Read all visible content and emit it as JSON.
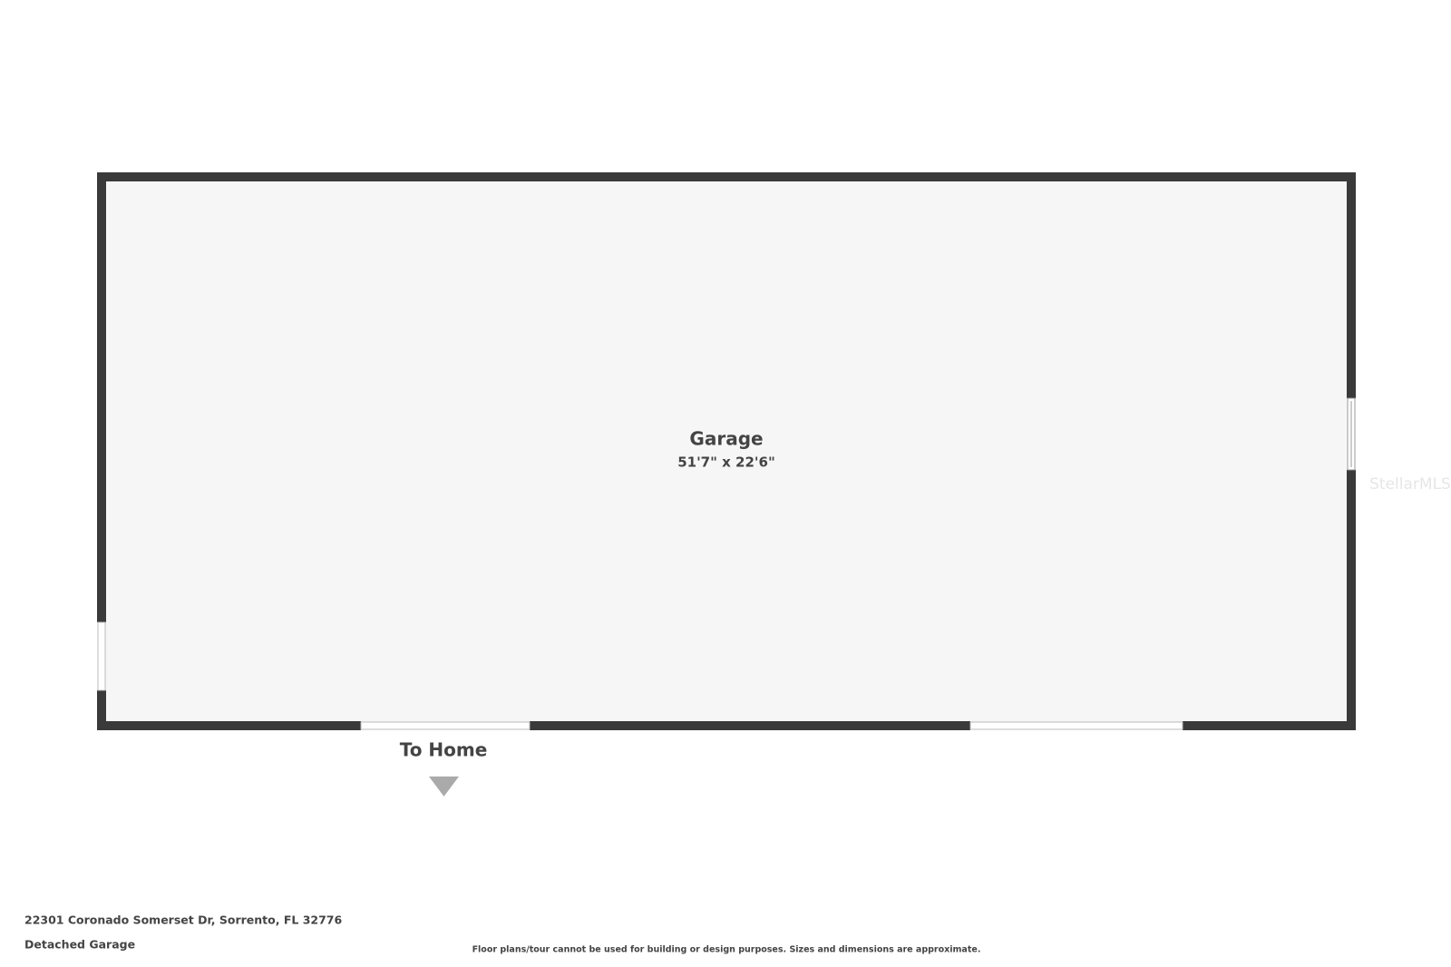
{
  "room": {
    "name": "Garage",
    "dimensions": "51'7\" x 22'6\""
  },
  "exit_label": "To Home",
  "watermark": "StellarMLS",
  "footer": {
    "address": "22301 Coronado Somerset Dr, Sorrento, FL 32776",
    "subtitle": "Detached Garage",
    "disclaimer": "Floor plans/tour cannot be used for building or design purposes. Sizes and dimensions are approximate."
  }
}
